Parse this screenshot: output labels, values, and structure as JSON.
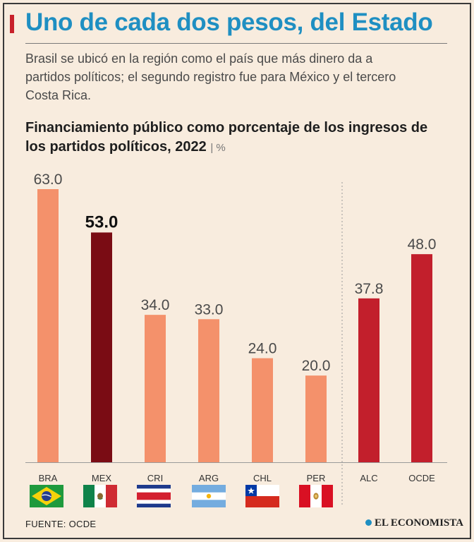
{
  "header": {
    "headline": "Uno de cada dos pesos, del Estado",
    "subtitle": "Brasil se ubicó en la región como el país que más dinero da a partidos políticos; el segundo registro fue para México y el tercero Costa Rica."
  },
  "chart_data": {
    "type": "bar",
    "title": "Financiamiento público como porcentaje de los ingresos de los partidos políticos, 2022",
    "unit": "%",
    "categories": [
      "BRA",
      "MEX",
      "CRI",
      "ARG",
      "CHL",
      "PER",
      "ALC",
      "OCDE"
    ],
    "values": [
      63.0,
      53.0,
      34.0,
      33.0,
      24.0,
      20.0,
      37.8,
      48.0
    ],
    "value_labels": [
      "63.0",
      "53.0",
      "34.0",
      "33.0",
      "24.0",
      "20.0",
      "37.8",
      "48.0"
    ],
    "highlight": "MEX",
    "groups": [
      "country",
      "country",
      "country",
      "country",
      "country",
      "country",
      "aggregate",
      "aggregate"
    ],
    "colors": {
      "country": "#f4916b",
      "highlight": "#7a0c14",
      "aggregate": "#c21f2c"
    },
    "ylim": [
      0,
      66
    ],
    "xlabel": "",
    "ylabel": ""
  },
  "flags": [
    "brazil-flag-icon",
    "mexico-flag-icon",
    "costa-rica-flag-icon",
    "argentina-flag-icon",
    "chile-flag-icon",
    "peru-flag-icon"
  ],
  "footer": {
    "source": "FUENTE:  OCDE",
    "brand": "EL ECONOMISTA"
  }
}
